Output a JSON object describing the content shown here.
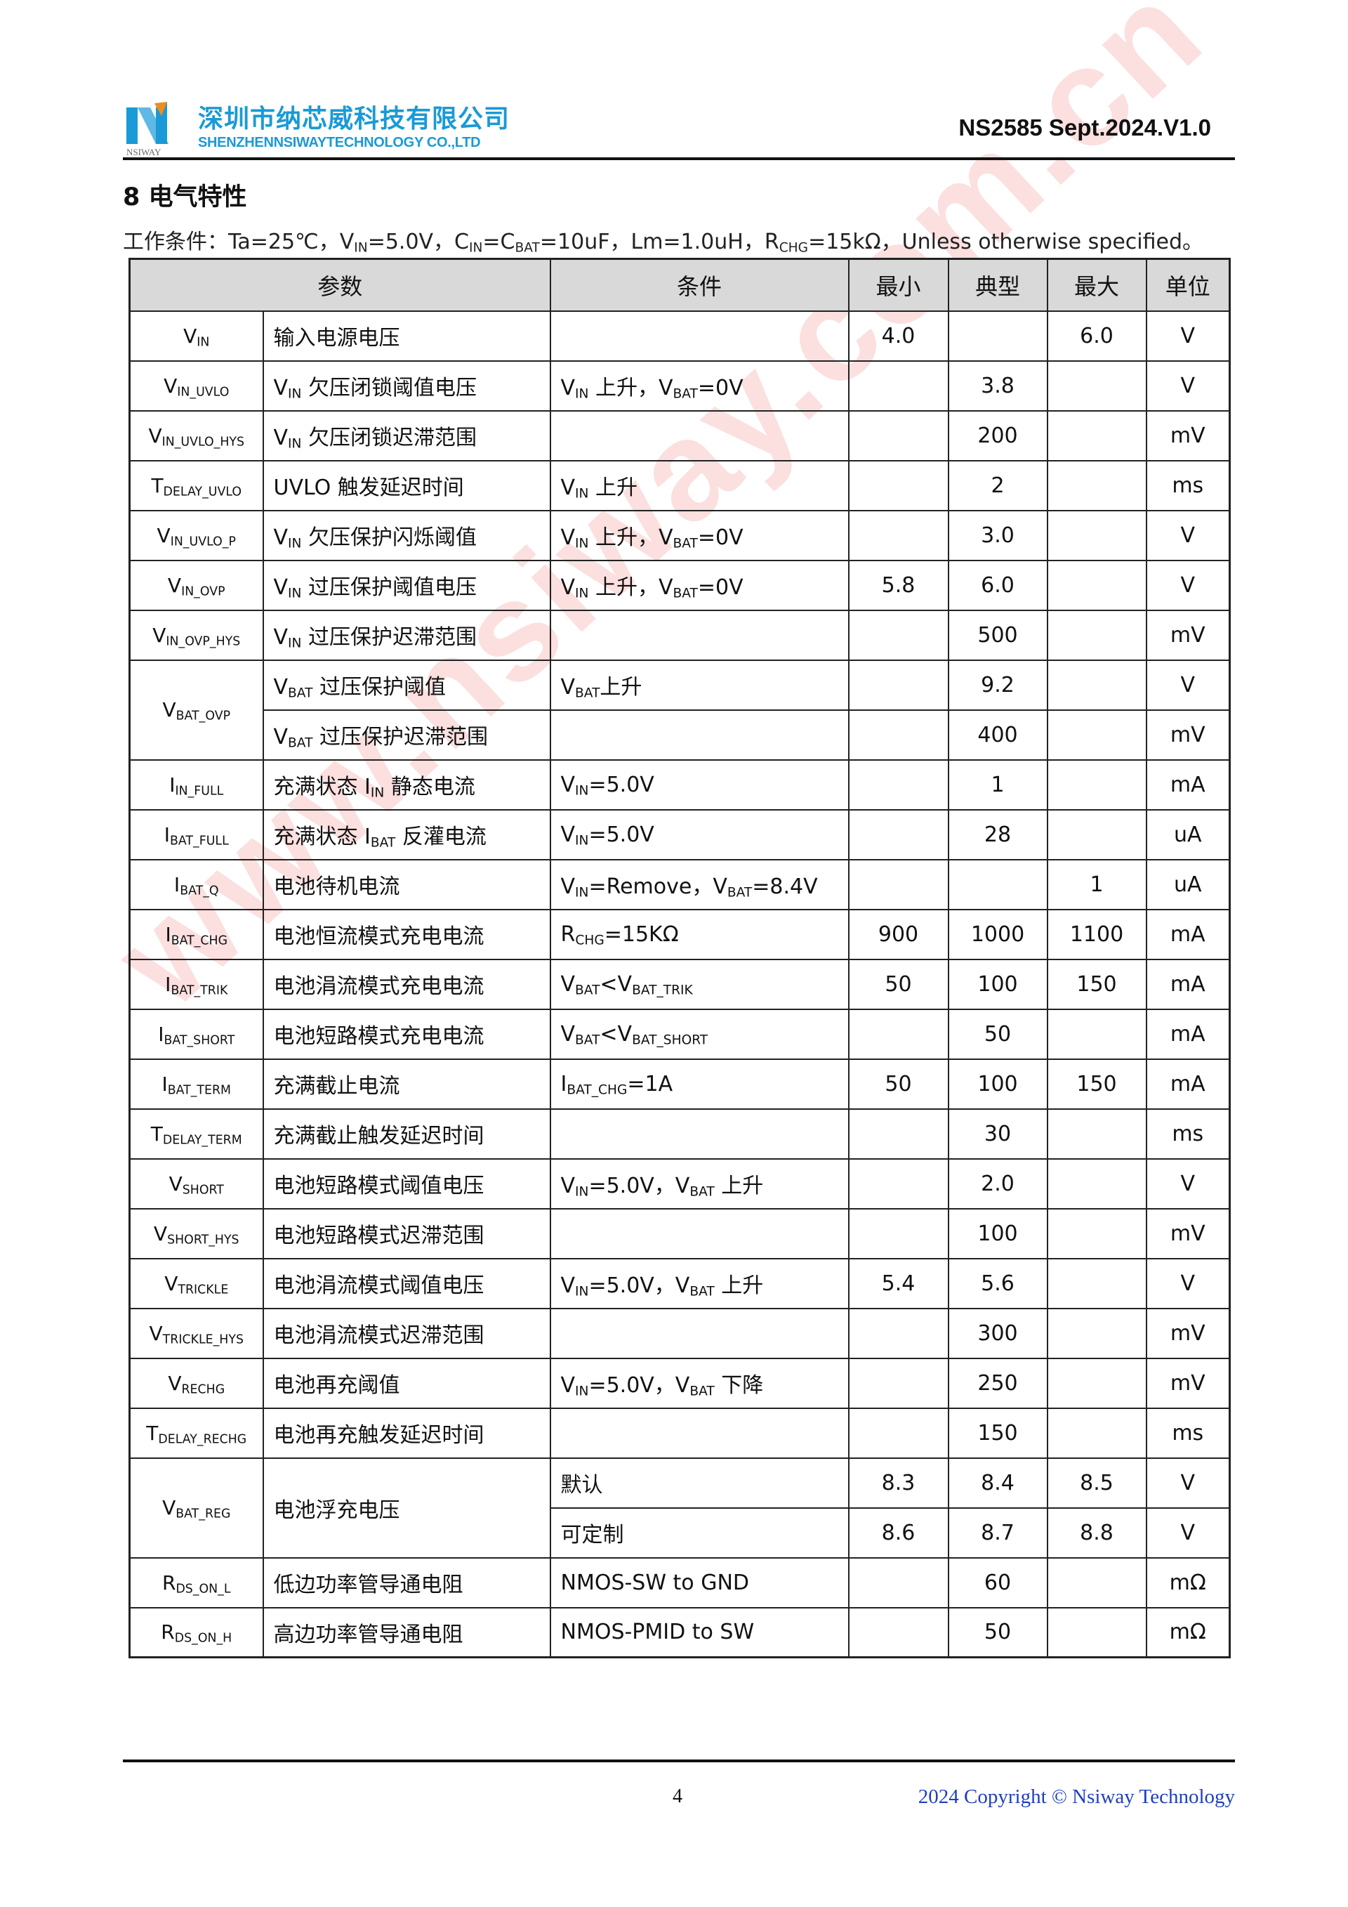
{
  "header": {
    "company_cn": "深圳市纳芯威科技有限公司",
    "company_en": "SHENZHENNSIWAYTECHNOLOGY CO.,LTD",
    "logo_text": "NSIWAY",
    "doc_id": "NS2585 Sept.2024.V1.0",
    "colors": {
      "brand_blue": "#1a9ad6",
      "brand_orange": "#f08c1e"
    }
  },
  "section_title": "8 电气特性",
  "conditions": [
    {
      "t": "工作条件：Ta=25℃，V"
    },
    {
      "s": "IN"
    },
    {
      "t": "=5.0V，C"
    },
    {
      "s": "IN"
    },
    {
      "t": "=C"
    },
    {
      "s": "BAT"
    },
    {
      "t": "=10uF，Lm=1.0uH，R"
    },
    {
      "s": "CHG"
    },
    {
      "t": "=15kΩ，Unless otherwise specified。"
    }
  ],
  "table": {
    "headers": [
      "参数",
      "条件",
      "最小",
      "典型",
      "最大",
      "单位"
    ],
    "rows": [
      {
        "sym": [
          {
            "t": "V"
          },
          {
            "s": "IN"
          }
        ],
        "desc": [
          {
            "t": "输入电源电压"
          }
        ],
        "cond": [],
        "min": "4.0",
        "typ": "",
        "max": "6.0",
        "unit": "V"
      },
      {
        "sym": [
          {
            "t": "V"
          },
          {
            "s": "IN_UVLO"
          }
        ],
        "desc": [
          {
            "t": "V"
          },
          {
            "s": "IN"
          },
          {
            "t": " 欠压闭锁阈值电压"
          }
        ],
        "cond": [
          {
            "t": "V"
          },
          {
            "s": "IN"
          },
          {
            "t": " 上升，V"
          },
          {
            "s": "BAT"
          },
          {
            "t": "=0V"
          }
        ],
        "min": "",
        "typ": "3.8",
        "max": "",
        "unit": "V"
      },
      {
        "sym": [
          {
            "t": "V"
          },
          {
            "s": "IN_UVLO_HYS"
          }
        ],
        "desc": [
          {
            "t": "V"
          },
          {
            "s": "IN"
          },
          {
            "t": " 欠压闭锁迟滞范围"
          }
        ],
        "cond": [],
        "min": "",
        "typ": "200",
        "max": "",
        "unit": "mV"
      },
      {
        "sym": [
          {
            "t": "T"
          },
          {
            "s": "DELAY_UVLO"
          }
        ],
        "desc": [
          {
            "t": "UVLO 触发延迟时间"
          }
        ],
        "cond": [
          {
            "t": "V"
          },
          {
            "s": "IN"
          },
          {
            "t": " 上升"
          }
        ],
        "min": "",
        "typ": "2",
        "max": "",
        "unit": "ms"
      },
      {
        "sym": [
          {
            "t": "V"
          },
          {
            "s": "IN_UVLO_P"
          }
        ],
        "desc": [
          {
            "t": "V"
          },
          {
            "s": "IN"
          },
          {
            "t": " 欠压保护闪烁阈值"
          }
        ],
        "cond": [
          {
            "t": "V"
          },
          {
            "s": "IN"
          },
          {
            "t": " 上升，V"
          },
          {
            "s": "BAT"
          },
          {
            "t": "=0V"
          }
        ],
        "min": "",
        "typ": "3.0",
        "max": "",
        "unit": "V"
      },
      {
        "sym": [
          {
            "t": "V"
          },
          {
            "s": "IN_OVP"
          }
        ],
        "desc": [
          {
            "t": "V"
          },
          {
            "s": "IN"
          },
          {
            "t": " 过压保护阈值电压"
          }
        ],
        "cond": [
          {
            "t": "V"
          },
          {
            "s": "IN"
          },
          {
            "t": " 上升，V"
          },
          {
            "s": "BAT"
          },
          {
            "t": "=0V"
          }
        ],
        "min": "5.8",
        "typ": "6.0",
        "max": "",
        "unit": "V"
      },
      {
        "sym": [
          {
            "t": "V"
          },
          {
            "s": "IN_OVP_HYS"
          }
        ],
        "desc": [
          {
            "t": "V"
          },
          {
            "s": "IN"
          },
          {
            "t": " 过压保护迟滞范围"
          }
        ],
        "cond": [],
        "min": "",
        "typ": "500",
        "max": "",
        "unit": "mV"
      },
      {
        "sym": [
          {
            "t": "V"
          },
          {
            "s": "BAT_OVP"
          }
        ],
        "symSpan": 2,
        "desc": [
          {
            "t": "V"
          },
          {
            "s": "BAT"
          },
          {
            "t": " 过压保护阈值"
          }
        ],
        "cond": [
          {
            "t": "V"
          },
          {
            "s": "BAT"
          },
          {
            "t": "上升"
          }
        ],
        "min": "",
        "typ": "9.2",
        "max": "",
        "unit": "V"
      },
      {
        "desc": [
          {
            "t": "V"
          },
          {
            "s": "BAT"
          },
          {
            "t": " 过压保护迟滞范围"
          }
        ],
        "cond": [],
        "min": "",
        "typ": "400",
        "max": "",
        "unit": "mV"
      },
      {
        "sym": [
          {
            "t": "I"
          },
          {
            "s": "IN_FULL"
          }
        ],
        "desc": [
          {
            "t": "充满状态 I"
          },
          {
            "s": "IN"
          },
          {
            "t": " 静态电流"
          }
        ],
        "cond": [
          {
            "t": "V"
          },
          {
            "s": "IN"
          },
          {
            "t": "=5.0V"
          }
        ],
        "min": "",
        "typ": "1",
        "max": "",
        "unit": "mA"
      },
      {
        "sym": [
          {
            "t": "I"
          },
          {
            "s": "BAT_FULL"
          }
        ],
        "desc": [
          {
            "t": "充满状态 I"
          },
          {
            "s": "BAT"
          },
          {
            "t": " 反灌电流"
          }
        ],
        "cond": [
          {
            "t": "V"
          },
          {
            "s": "IN"
          },
          {
            "t": "=5.0V"
          }
        ],
        "min": "",
        "typ": "28",
        "max": "",
        "unit": "uA"
      },
      {
        "sym": [
          {
            "t": "I"
          },
          {
            "s": "BAT_Q"
          }
        ],
        "desc": [
          {
            "t": "电池待机电流"
          }
        ],
        "cond": [
          {
            "t": "V"
          },
          {
            "s": "IN"
          },
          {
            "t": "=Remove，V"
          },
          {
            "s": "BAT"
          },
          {
            "t": "=8.4V"
          }
        ],
        "min": "",
        "typ": "",
        "max": "1",
        "unit": "uA"
      },
      {
        "sym": [
          {
            "t": "I"
          },
          {
            "s": "BAT_CHG"
          }
        ],
        "desc": [
          {
            "t": "电池恒流模式充电电流"
          }
        ],
        "cond": [
          {
            "t": "R"
          },
          {
            "s": "CHG"
          },
          {
            "t": "=15KΩ"
          }
        ],
        "min": "900",
        "typ": "1000",
        "max": "1100",
        "unit": "mA"
      },
      {
        "sym": [
          {
            "t": "I"
          },
          {
            "s": "BAT_TRIK"
          }
        ],
        "desc": [
          {
            "t": "电池涓流模式充电电流"
          }
        ],
        "cond": [
          {
            "t": "V"
          },
          {
            "s": "BAT"
          },
          {
            "t": "<V"
          },
          {
            "s": "BAT_TRIK"
          }
        ],
        "min": "50",
        "typ": "100",
        "max": "150",
        "unit": "mA"
      },
      {
        "sym": [
          {
            "t": "I"
          },
          {
            "s": "BAT_SHORT"
          }
        ],
        "desc": [
          {
            "t": "电池短路模式充电电流"
          }
        ],
        "cond": [
          {
            "t": "V"
          },
          {
            "s": "BAT"
          },
          {
            "t": "<V"
          },
          {
            "s": "BAT_SHORT"
          }
        ],
        "min": "",
        "typ": "50",
        "max": "",
        "unit": "mA"
      },
      {
        "sym": [
          {
            "t": "I"
          },
          {
            "s": "BAT_TERM"
          }
        ],
        "desc": [
          {
            "t": "充满截止电流"
          }
        ],
        "cond": [
          {
            "t": "I"
          },
          {
            "s": "BAT_CHG"
          },
          {
            "t": "=1A"
          }
        ],
        "min": "50",
        "typ": "100",
        "max": "150",
        "unit": "mA"
      },
      {
        "sym": [
          {
            "t": "T"
          },
          {
            "s": "DELAY_TERM"
          }
        ],
        "desc": [
          {
            "t": "充满截止触发延迟时间"
          }
        ],
        "cond": [],
        "min": "",
        "typ": "30",
        "max": "",
        "unit": "ms"
      },
      {
        "sym": [
          {
            "t": "V"
          },
          {
            "s": "SHORT"
          }
        ],
        "desc": [
          {
            "t": "电池短路模式阈值电压"
          }
        ],
        "cond": [
          {
            "t": "V"
          },
          {
            "s": "IN"
          },
          {
            "t": "=5.0V，V"
          },
          {
            "s": "BAT"
          },
          {
            "t": " 上升"
          }
        ],
        "min": "",
        "typ": "2.0",
        "max": "",
        "unit": "V"
      },
      {
        "sym": [
          {
            "t": "V"
          },
          {
            "s": "SHORT_HYS"
          }
        ],
        "desc": [
          {
            "t": "电池短路模式迟滞范围"
          }
        ],
        "cond": [],
        "min": "",
        "typ": "100",
        "max": "",
        "unit": "mV"
      },
      {
        "sym": [
          {
            "t": "V"
          },
          {
            "s": "TRICKLE"
          }
        ],
        "desc": [
          {
            "t": "电池涓流模式阈值电压"
          }
        ],
        "cond": [
          {
            "t": "V"
          },
          {
            "s": "IN"
          },
          {
            "t": "=5.0V，V"
          },
          {
            "s": "BAT"
          },
          {
            "t": " 上升"
          }
        ],
        "min": "5.4",
        "typ": "5.6",
        "max": "",
        "unit": "V"
      },
      {
        "sym": [
          {
            "t": "V"
          },
          {
            "s": "TRICKLE_HYS"
          }
        ],
        "desc": [
          {
            "t": "电池涓流模式迟滞范围"
          }
        ],
        "cond": [],
        "min": "",
        "typ": "300",
        "max": "",
        "unit": "mV"
      },
      {
        "sym": [
          {
            "t": "V"
          },
          {
            "s": "RECHG"
          }
        ],
        "desc": [
          {
            "t": "电池再充阈值"
          }
        ],
        "cond": [
          {
            "t": "V"
          },
          {
            "s": "IN"
          },
          {
            "t": "=5.0V，V"
          },
          {
            "s": "BAT"
          },
          {
            "t": " 下降"
          }
        ],
        "min": "",
        "typ": "250",
        "max": "",
        "unit": "mV"
      },
      {
        "sym": [
          {
            "t": "T"
          },
          {
            "s": "DELAY_RECHG"
          }
        ],
        "desc": [
          {
            "t": "电池再充触发延迟时间"
          }
        ],
        "cond": [],
        "min": "",
        "typ": "150",
        "max": "",
        "unit": "ms"
      },
      {
        "sym": [
          {
            "t": "V"
          },
          {
            "s": "BAT_REG"
          }
        ],
        "symSpan": 2,
        "desc": [
          {
            "t": "电池浮充电压"
          }
        ],
        "descSpan": 2,
        "cond": [
          {
            "t": "默认"
          }
        ],
        "min": "8.3",
        "typ": "8.4",
        "max": "8.5",
        "unit": "V"
      },
      {
        "cond": [
          {
            "t": "可定制"
          }
        ],
        "min": "8.6",
        "typ": "8.7",
        "max": "8.8",
        "unit": "V"
      },
      {
        "sym": [
          {
            "t": "R"
          },
          {
            "s": "DS_ON_L"
          }
        ],
        "desc": [
          {
            "t": "低边功率管导通电阻"
          }
        ],
        "cond": [
          {
            "t": "NMOS-SW to GND"
          }
        ],
        "min": "",
        "typ": "60",
        "max": "",
        "unit": "mΩ"
      },
      {
        "sym": [
          {
            "t": "R"
          },
          {
            "s": "DS_ON_H"
          }
        ],
        "desc": [
          {
            "t": "高边功率管导通电阻"
          }
        ],
        "cond": [
          {
            "t": "NMOS-PMID to SW"
          }
        ],
        "min": "",
        "typ": "50",
        "max": "",
        "unit": "mΩ"
      }
    ]
  },
  "watermark": "www.nsiway.com.cn",
  "footer": {
    "page_number": "4",
    "copyright": "2024 Copyright © Nsiway Technology"
  }
}
